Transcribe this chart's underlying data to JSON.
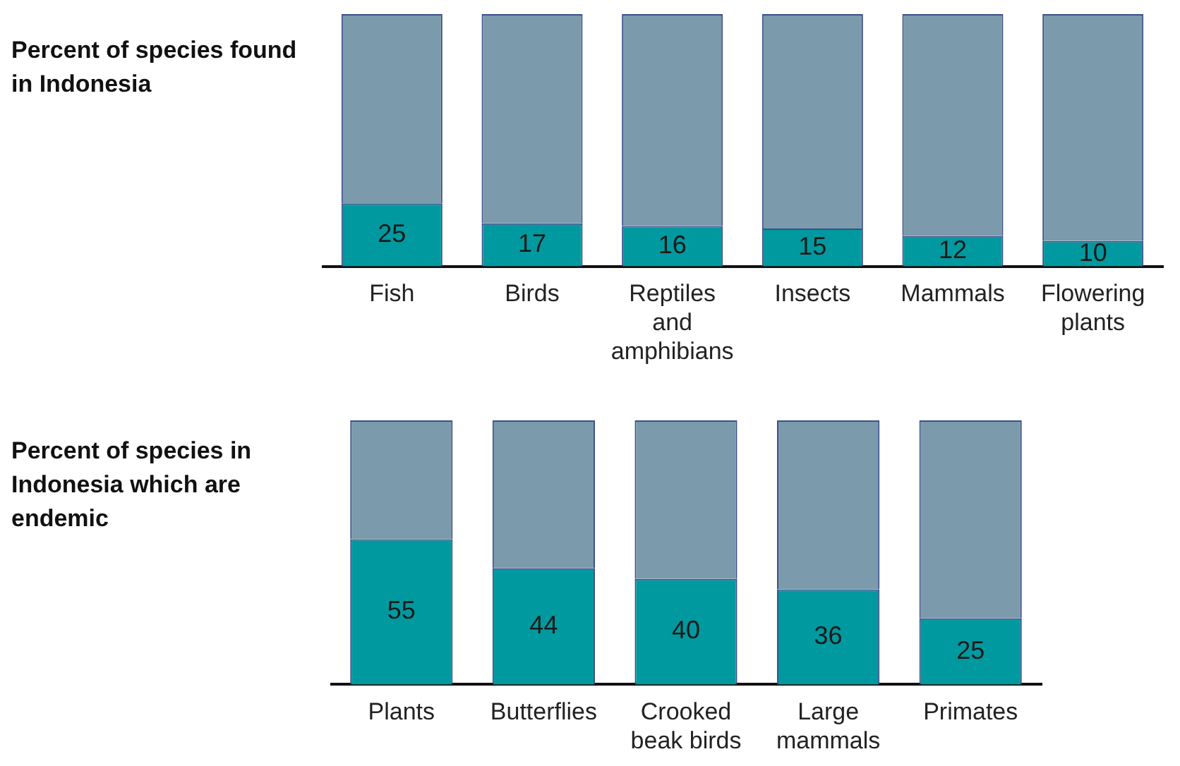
{
  "chart_data": [
    {
      "type": "bar",
      "title": "Percent of species found in Indonesia",
      "categories": [
        "Fish",
        "Birds",
        "Reptiles and amphibians",
        "Insects",
        "Mammals",
        "Flowering plants"
      ],
      "stacked": true,
      "ylim": [
        0,
        100
      ],
      "tick_labels": "x",
      "grid": false,
      "legend": false,
      "series": [
        {
          "color": "#00999f",
          "values": [
            25,
            17,
            16,
            15,
            12,
            10
          ],
          "value_labels": [
            "25",
            "17",
            "16",
            "15",
            "12",
            "10"
          ]
        },
        {
          "color": "#7b9aab",
          "values": [
            75,
            83,
            84,
            85,
            88,
            90
          ]
        }
      ]
    },
    {
      "type": "bar",
      "title": "Percent of species in Indonesia which are endemic",
      "categories": [
        "Plants",
        "Butterflies",
        "Crooked beak birds",
        "Large mammals",
        "Primates"
      ],
      "stacked": true,
      "ylim": [
        0,
        100
      ],
      "tick_labels": "x",
      "grid": false,
      "legend": false,
      "series": [
        {
          "color": "#00999f",
          "values": [
            55,
            44,
            40,
            36,
            25
          ],
          "value_labels": [
            "55",
            "44",
            "40",
            "36",
            "25"
          ]
        },
        {
          "color": "#7b9aab",
          "values": [
            45,
            56,
            60,
            64,
            75
          ]
        }
      ]
    }
  ]
}
